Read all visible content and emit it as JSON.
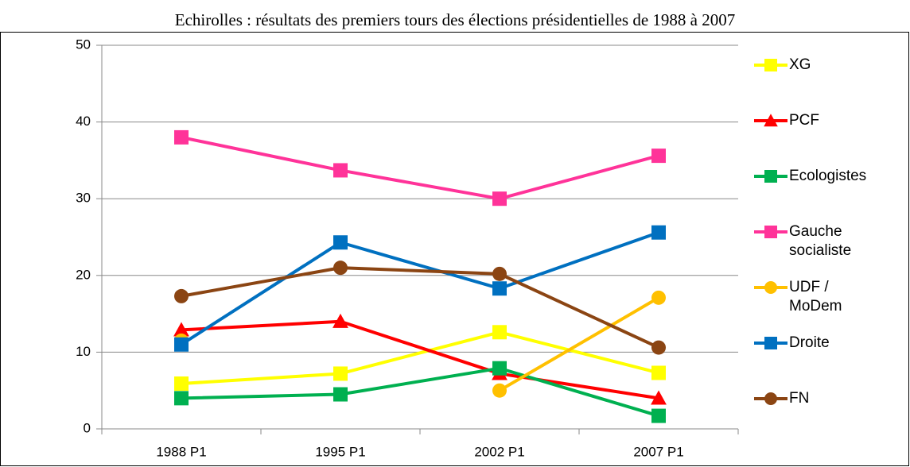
{
  "chart_data": {
    "type": "line",
    "title": "Echirolles : résultats des premiers tours des élections présidentielles de 1988 à 2007",
    "categories": [
      "1988 P1",
      "1995 P1",
      "2002 P1",
      "2007 P1"
    ],
    "ylim": [
      0,
      50
    ],
    "yticks": [
      0,
      10,
      20,
      30,
      40,
      50
    ],
    "grid": true,
    "legend": "right",
    "series": [
      {
        "name": "XG",
        "color": "#ffff00",
        "marker": "square",
        "values": [
          5.9,
          7.2,
          12.6,
          7.3
        ]
      },
      {
        "name": "PCF",
        "color": "#ff0000",
        "marker": "triangle",
        "values": [
          12.9,
          14.0,
          7.2,
          4.0
        ]
      },
      {
        "name": "Ecologistes",
        "color": "#00b050",
        "marker": "square",
        "values": [
          4.0,
          4.5,
          7.9,
          1.7
        ]
      },
      {
        "name": "Gauche socialiste",
        "color": "#ff3399",
        "marker": "square",
        "values": [
          38.0,
          33.7,
          30.0,
          35.6
        ]
      },
      {
        "name": "UDF / MoDem",
        "color": "#ffc000",
        "marker": "circle",
        "values": [
          11.5,
          null,
          5.0,
          17.1
        ]
      },
      {
        "name": "Droite",
        "color": "#0070c0",
        "marker": "square",
        "values": [
          11.0,
          24.3,
          18.3,
          25.6
        ]
      },
      {
        "name": "FN",
        "color": "#8b4513",
        "marker": "circle",
        "values": [
          17.3,
          21.0,
          20.2,
          10.6
        ]
      }
    ]
  }
}
